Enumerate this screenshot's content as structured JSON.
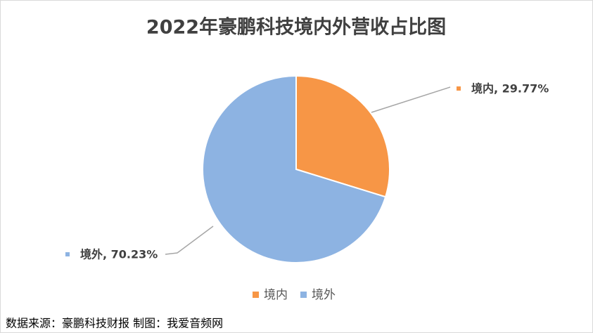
{
  "chart_data": {
    "type": "pie",
    "title": "2022年豪鹏科技境内外营收占比图",
    "categories": [
      "境内",
      "境外"
    ],
    "values": [
      29.77,
      70.23
    ],
    "value_labels": [
      "境内, 29.77%",
      "境外, 70.23%"
    ],
    "colors": [
      "#f79646",
      "#8db3e2"
    ],
    "legend": "bottom",
    "source": "数据来源：豪鹏科技财报  制图：我爱音频网"
  }
}
